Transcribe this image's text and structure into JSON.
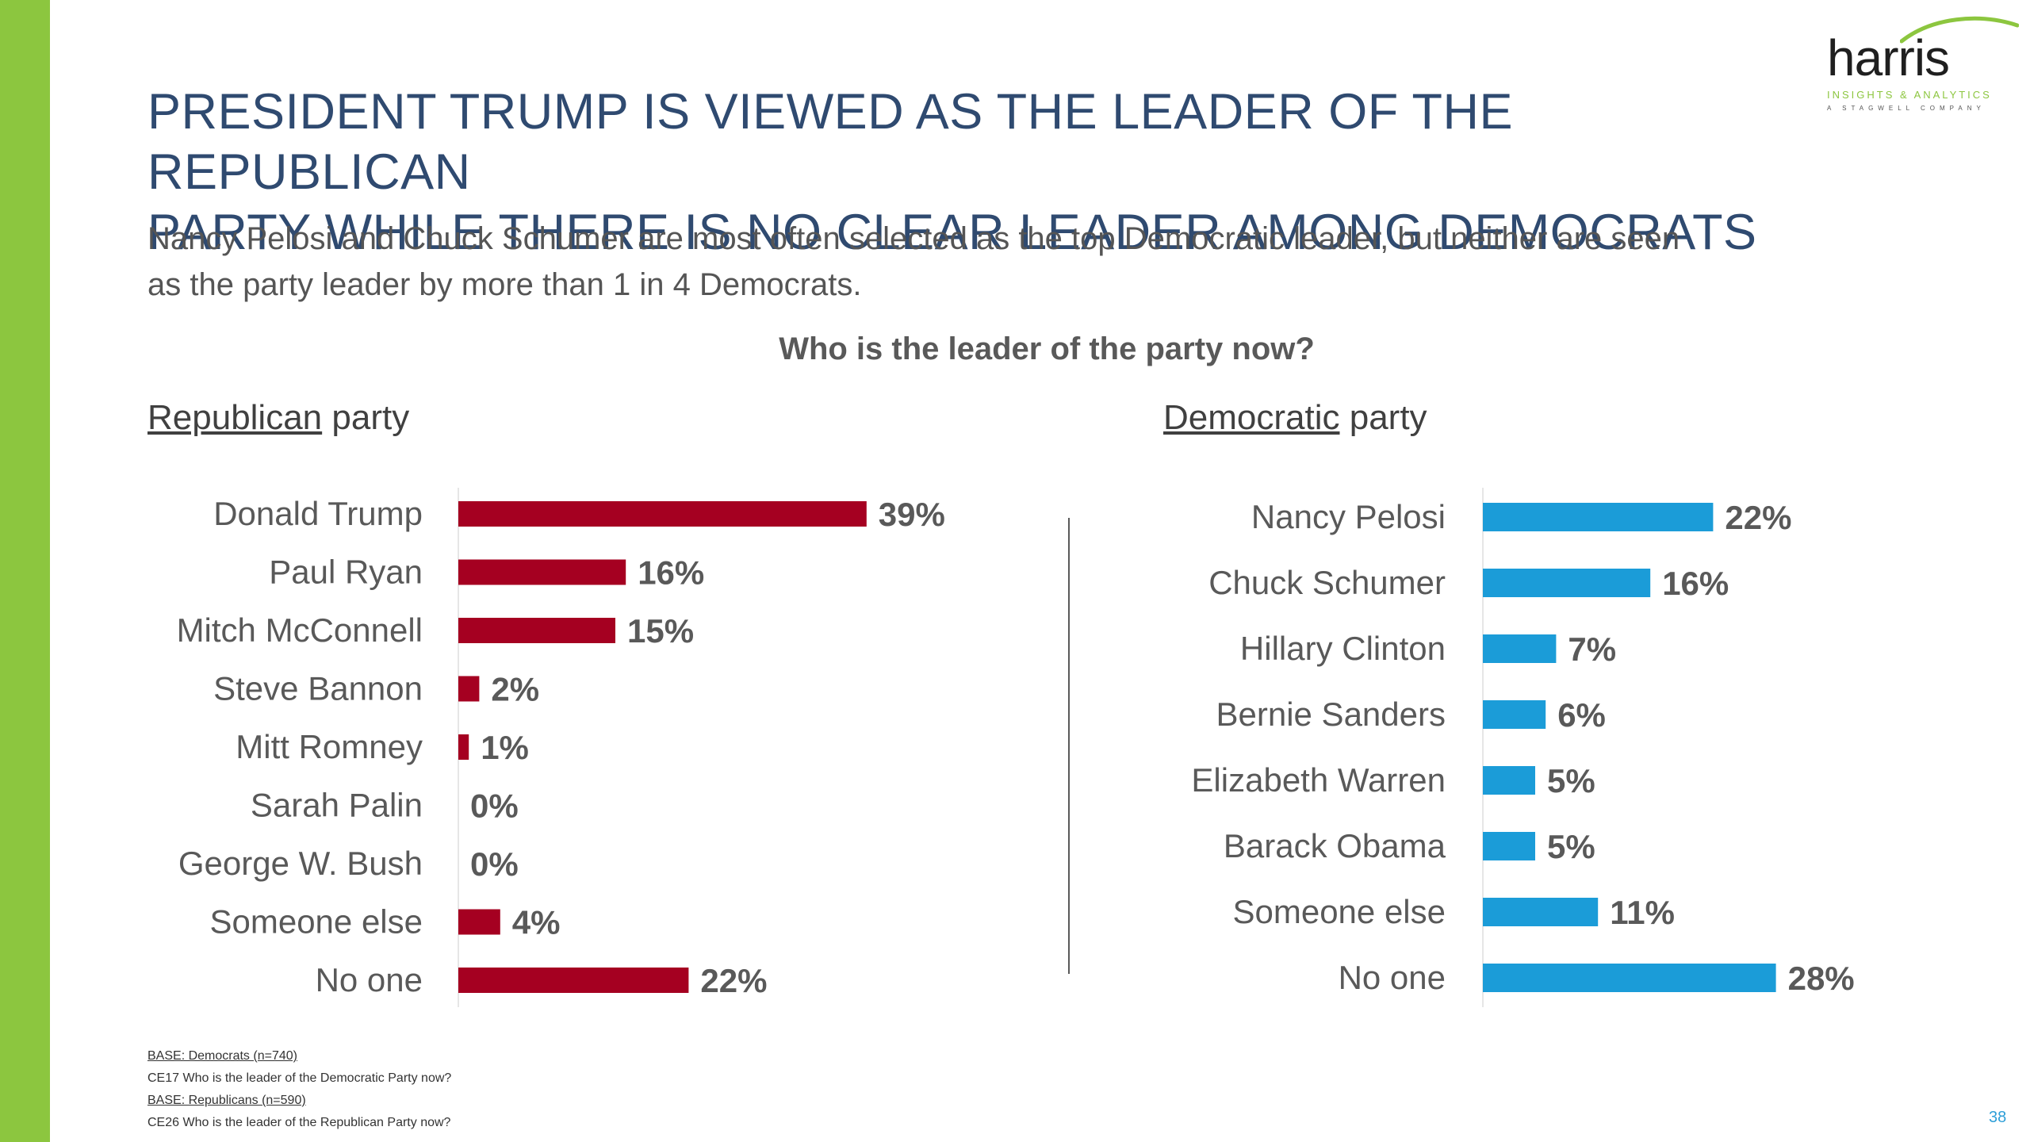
{
  "title_line1": "PRESIDENT TRUMP IS VIEWED AS THE LEADER OF THE REPUBLICAN",
  "title_line2": "PARTY WHILE THERE IS NO CLEAR LEADER AMONG DEMOCRATS",
  "subtitle_line1": "Nancy Pelosi and Chuck Schumer are most often selected as the top Democratic leader, but neither are seen",
  "subtitle_line2": "as the party leader by more than 1 in 4 Democrats.",
  "question": "Who is the leader of the party now?",
  "logo": {
    "word": "harris",
    "tagline": "INSIGHTS & ANALYTICS",
    "tagline2": "A STAGWELL COMPANY"
  },
  "republican_heading": {
    "underlined": "Republican",
    "rest": " party"
  },
  "democratic_heading": {
    "underlined": "Democratic",
    "rest": " party"
  },
  "footnotes": [
    {
      "text": "BASE: Democrats (n=740)",
      "underline": true
    },
    {
      "text": "CE17  Who is the leader of the Democratic Party now?",
      "underline": false
    },
    {
      "text": "BASE: Republicans (n=590)",
      "underline": true
    },
    {
      "text": "CE26 Who is the leader of the Republican Party now?",
      "underline": false
    }
  ],
  "page_number": "38",
  "colors": {
    "republican": "#a50021",
    "democratic": "#1b9cd8",
    "accent": "#8cc63f",
    "title": "#2f4a70"
  },
  "chart_data": [
    {
      "type": "bar",
      "orientation": "horizontal",
      "title": "Republican party",
      "categories": [
        "Donald Trump",
        "Paul Ryan",
        "Mitch McConnell",
        "Steve Bannon",
        "Mitt Romney",
        "Sarah Palin",
        "George W. Bush",
        "Someone else",
        "No one"
      ],
      "values": [
        39,
        16,
        15,
        2,
        1,
        0,
        0,
        4,
        22
      ],
      "labels": [
        "39%",
        "16%",
        "15%",
        "2%",
        "1%",
        "0%",
        "0%",
        "4%",
        "22%"
      ],
      "unit": "%",
      "color": "#a50021",
      "grid": false,
      "legend": "none"
    },
    {
      "type": "bar",
      "orientation": "horizontal",
      "title": "Democratic party",
      "categories": [
        "Nancy Pelosi",
        "Chuck Schumer",
        "Hillary Clinton",
        "Bernie Sanders",
        "Elizabeth Warren",
        "Barack Obama",
        "Someone else",
        "No one"
      ],
      "values": [
        22,
        16,
        7,
        6,
        5,
        5,
        11,
        28
      ],
      "labels": [
        "22%",
        "16%",
        "7%",
        "6%",
        "5%",
        "5%",
        "11%",
        "28%"
      ],
      "unit": "%",
      "color": "#1b9cd8",
      "grid": false,
      "legend": "none"
    }
  ]
}
